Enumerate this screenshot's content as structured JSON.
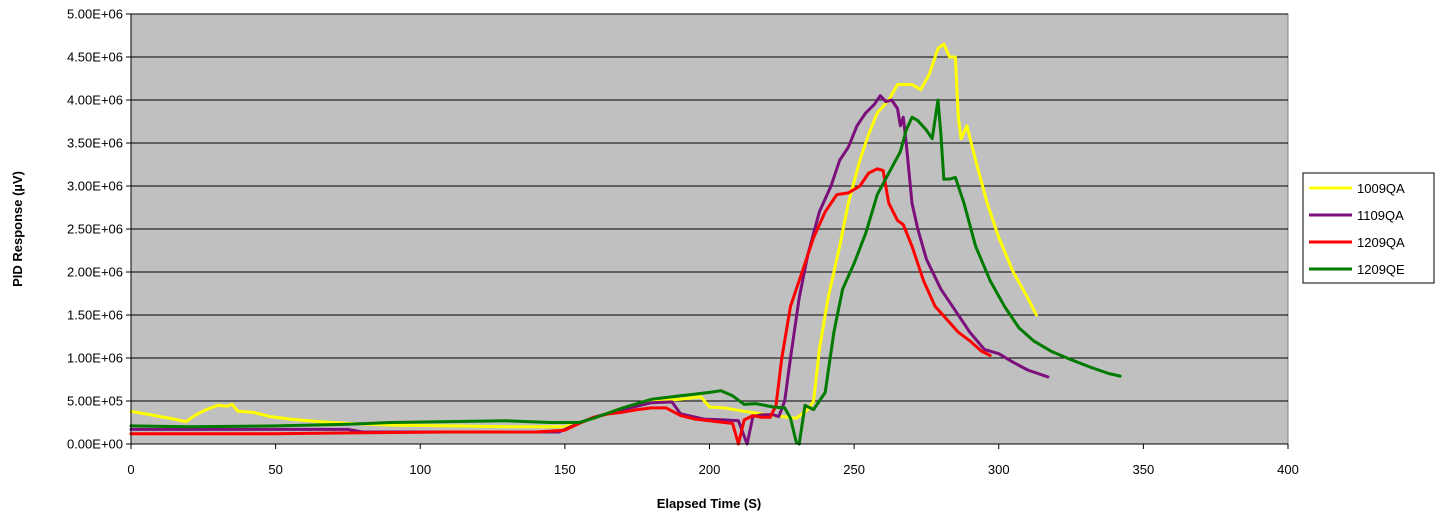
{
  "chart_data": {
    "type": "line",
    "title": "",
    "xlabel": "Elapsed Time (S)",
    "ylabel": "PID Response (µV)",
    "xlim": [
      0,
      400
    ],
    "ylim": [
      0,
      5000000
    ],
    "x_ticks": [
      0,
      50,
      100,
      150,
      200,
      250,
      300,
      350,
      400
    ],
    "x_tick_labels": [
      "0",
      "50",
      "100",
      "150",
      "200",
      "250",
      "300",
      "350",
      "400"
    ],
    "y_ticks": [
      0,
      500000,
      1000000,
      1500000,
      2000000,
      2500000,
      3000000,
      3500000,
      4000000,
      4500000,
      5000000
    ],
    "y_tick_labels": [
      "0.00E+00",
      "5.00E+05",
      "1.00E+06",
      "1.50E+06",
      "2.00E+06",
      "2.50E+06",
      "3.00E+06",
      "3.50E+06",
      "4.00E+06",
      "4.50E+06",
      "5.00E+06"
    ],
    "grid": "horizontal",
    "plot_background": "#c0c0c0",
    "legend_position": "right",
    "series": [
      {
        "name": "1009QA",
        "color": "#ffff00",
        "points": [
          [
            0,
            380000
          ],
          [
            5,
            350000
          ],
          [
            10,
            320000
          ],
          [
            15,
            290000
          ],
          [
            19,
            260000
          ],
          [
            22,
            330000
          ],
          [
            26,
            400000
          ],
          [
            30,
            450000
          ],
          [
            33,
            440000
          ],
          [
            35,
            460000
          ],
          [
            37,
            380000
          ],
          [
            42,
            370000
          ],
          [
            48,
            320000
          ],
          [
            55,
            290000
          ],
          [
            65,
            260000
          ],
          [
            75,
            240000
          ],
          [
            90,
            220000
          ],
          [
            110,
            210000
          ],
          [
            130,
            200000
          ],
          [
            150,
            200000
          ],
          [
            160,
            300000
          ],
          [
            170,
            420000
          ],
          [
            180,
            500000
          ],
          [
            190,
            520000
          ],
          [
            197,
            550000
          ],
          [
            200,
            430000
          ],
          [
            205,
            420000
          ],
          [
            212,
            380000
          ],
          [
            220,
            340000
          ],
          [
            230,
            300000
          ],
          [
            234,
            400000
          ],
          [
            236,
            500000
          ],
          [
            238,
            1100000
          ],
          [
            241,
            1700000
          ],
          [
            245,
            2300000
          ],
          [
            248,
            2800000
          ],
          [
            252,
            3300000
          ],
          [
            255,
            3600000
          ],
          [
            258,
            3850000
          ],
          [
            262,
            4000000
          ],
          [
            265,
            4180000
          ],
          [
            270,
            4180000
          ],
          [
            273,
            4120000
          ],
          [
            276,
            4300000
          ],
          [
            279,
            4600000
          ],
          [
            281,
            4650000
          ],
          [
            283,
            4500000
          ],
          [
            285,
            4500000
          ],
          [
            286,
            3800000
          ],
          [
            287,
            3550000
          ],
          [
            289,
            3700000
          ],
          [
            292,
            3300000
          ],
          [
            296,
            2800000
          ],
          [
            300,
            2400000
          ],
          [
            305,
            2000000
          ],
          [
            310,
            1700000
          ],
          [
            313,
            1500000
          ]
        ]
      },
      {
        "name": "1109QA",
        "color": "#7b0f7b",
        "points": [
          [
            0,
            170000
          ],
          [
            10,
            170000
          ],
          [
            20,
            170000
          ],
          [
            40,
            170000
          ],
          [
            60,
            170000
          ],
          [
            75,
            170000
          ],
          [
            80,
            140000
          ],
          [
            100,
            140000
          ],
          [
            130,
            140000
          ],
          [
            148,
            140000
          ],
          [
            152,
            200000
          ],
          [
            160,
            310000
          ],
          [
            170,
            400000
          ],
          [
            180,
            480000
          ],
          [
            187,
            490000
          ],
          [
            190,
            350000
          ],
          [
            198,
            290000
          ],
          [
            205,
            280000
          ],
          [
            210,
            270000
          ],
          [
            213,
            0
          ],
          [
            215,
            320000
          ],
          [
            218,
            340000
          ],
          [
            222,
            340000
          ],
          [
            224,
            320000
          ],
          [
            226,
            500000
          ],
          [
            228,
            1000000
          ],
          [
            231,
            1700000
          ],
          [
            234,
            2200000
          ],
          [
            238,
            2700000
          ],
          [
            242,
            3000000
          ],
          [
            245,
            3300000
          ],
          [
            248,
            3450000
          ],
          [
            251,
            3700000
          ],
          [
            254,
            3850000
          ],
          [
            257,
            3950000
          ],
          [
            259,
            4050000
          ],
          [
            261,
            3980000
          ],
          [
            263,
            4000000
          ],
          [
            265,
            3900000
          ],
          [
            266,
            3700000
          ],
          [
            267,
            3800000
          ],
          [
            268,
            3500000
          ],
          [
            270,
            2800000
          ],
          [
            272,
            2500000
          ],
          [
            275,
            2150000
          ],
          [
            280,
            1800000
          ],
          [
            285,
            1550000
          ],
          [
            290,
            1300000
          ],
          [
            295,
            1100000
          ],
          [
            300,
            1050000
          ],
          [
            305,
            950000
          ],
          [
            310,
            860000
          ],
          [
            317,
            780000
          ]
        ]
      },
      {
        "name": "1209QA",
        "color": "#ff0000",
        "points": [
          [
            0,
            120000
          ],
          [
            20,
            120000
          ],
          [
            50,
            120000
          ],
          [
            80,
            130000
          ],
          [
            110,
            140000
          ],
          [
            140,
            140000
          ],
          [
            150,
            160000
          ],
          [
            155,
            240000
          ],
          [
            160,
            310000
          ],
          [
            165,
            350000
          ],
          [
            170,
            370000
          ],
          [
            175,
            400000
          ],
          [
            180,
            420000
          ],
          [
            185,
            420000
          ],
          [
            190,
            330000
          ],
          [
            195,
            290000
          ],
          [
            200,
            270000
          ],
          [
            205,
            250000
          ],
          [
            208,
            240000
          ],
          [
            210,
            0
          ],
          [
            212,
            280000
          ],
          [
            215,
            330000
          ],
          [
            218,
            310000
          ],
          [
            221,
            310000
          ],
          [
            223,
            450000
          ],
          [
            225,
            1000000
          ],
          [
            228,
            1600000
          ],
          [
            232,
            2000000
          ],
          [
            236,
            2400000
          ],
          [
            240,
            2700000
          ],
          [
            244,
            2900000
          ],
          [
            248,
            2920000
          ],
          [
            252,
            3000000
          ],
          [
            255,
            3150000
          ],
          [
            258,
            3200000
          ],
          [
            260,
            3180000
          ],
          [
            262,
            2800000
          ],
          [
            265,
            2600000
          ],
          [
            267,
            2550000
          ],
          [
            270,
            2300000
          ],
          [
            274,
            1900000
          ],
          [
            278,
            1600000
          ],
          [
            282,
            1450000
          ],
          [
            286,
            1300000
          ],
          [
            290,
            1200000
          ],
          [
            294,
            1080000
          ],
          [
            297,
            1030000
          ]
        ]
      },
      {
        "name": "1209QE",
        "color": "#007a00",
        "points": [
          [
            0,
            210000
          ],
          [
            20,
            200000
          ],
          [
            50,
            210000
          ],
          [
            75,
            230000
          ],
          [
            90,
            250000
          ],
          [
            110,
            260000
          ],
          [
            130,
            270000
          ],
          [
            145,
            250000
          ],
          [
            155,
            250000
          ],
          [
            160,
            300000
          ],
          [
            165,
            360000
          ],
          [
            170,
            420000
          ],
          [
            175,
            470000
          ],
          [
            180,
            520000
          ],
          [
            190,
            560000
          ],
          [
            195,
            580000
          ],
          [
            200,
            600000
          ],
          [
            204,
            620000
          ],
          [
            208,
            560000
          ],
          [
            212,
            460000
          ],
          [
            216,
            470000
          ],
          [
            222,
            430000
          ],
          [
            226,
            420000
          ],
          [
            228,
            300000
          ],
          [
            230,
            20000
          ],
          [
            231,
            0
          ],
          [
            233,
            450000
          ],
          [
            236,
            400000
          ],
          [
            240,
            600000
          ],
          [
            243,
            1300000
          ],
          [
            246,
            1800000
          ],
          [
            250,
            2100000
          ],
          [
            254,
            2450000
          ],
          [
            258,
            2900000
          ],
          [
            262,
            3150000
          ],
          [
            266,
            3400000
          ],
          [
            268,
            3650000
          ],
          [
            270,
            3800000
          ],
          [
            272,
            3760000
          ],
          [
            275,
            3650000
          ],
          [
            277,
            3550000
          ],
          [
            279,
            4000000
          ],
          [
            280,
            3600000
          ],
          [
            281,
            3080000
          ],
          [
            283,
            3080000
          ],
          [
            285,
            3100000
          ],
          [
            288,
            2800000
          ],
          [
            292,
            2300000
          ],
          [
            297,
            1900000
          ],
          [
            302,
            1600000
          ],
          [
            307,
            1350000
          ],
          [
            312,
            1200000
          ],
          [
            318,
            1080000
          ],
          [
            325,
            980000
          ],
          [
            332,
            890000
          ],
          [
            338,
            820000
          ],
          [
            342,
            790000
          ]
        ]
      }
    ]
  }
}
